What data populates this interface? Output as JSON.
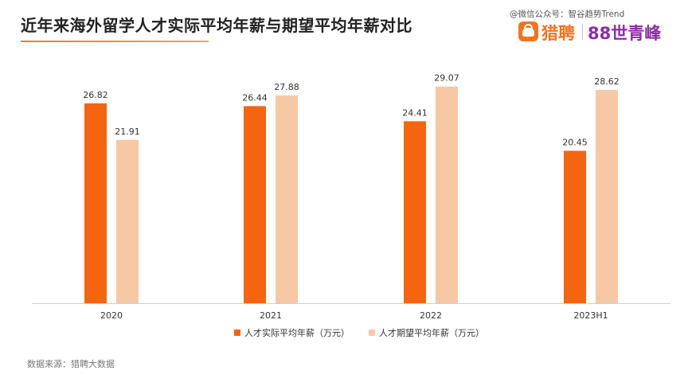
{
  "header": {
    "title": "近年来海外留学人才实际平均年薪与期望平均年薪对比",
    "watermark": "@微信公众号：智谷趋势Trend",
    "logo_primary": "猎聘",
    "logo_secondary": "88世青峰"
  },
  "colors": {
    "actual": "#f5650f",
    "expected": "#f7c8a5",
    "axis": "#cfcfcf"
  },
  "chart_data": {
    "type": "bar",
    "categories": [
      "2020",
      "2021",
      "2022",
      "2023H1"
    ],
    "series": [
      {
        "name": "人才实际平均年薪（万元）",
        "values": [
          26.82,
          26.44,
          24.41,
          20.45
        ]
      },
      {
        "name": "人才期望平均年薪（万元）",
        "values": [
          21.91,
          27.88,
          29.07,
          28.62
        ]
      }
    ],
    "title": "近年来海外留学人才实际平均年薪与期望平均年薪对比",
    "xlabel": "",
    "ylabel": "",
    "ylim": [
      0,
      30
    ],
    "grid": false,
    "legend": "bottom",
    "data_labels": true
  },
  "legend": {
    "items": [
      "人才实际平均年薪（万元）",
      "人才期望平均年薪（万元）"
    ]
  },
  "footer": {
    "source": "数据来源：猎聘大数据"
  }
}
